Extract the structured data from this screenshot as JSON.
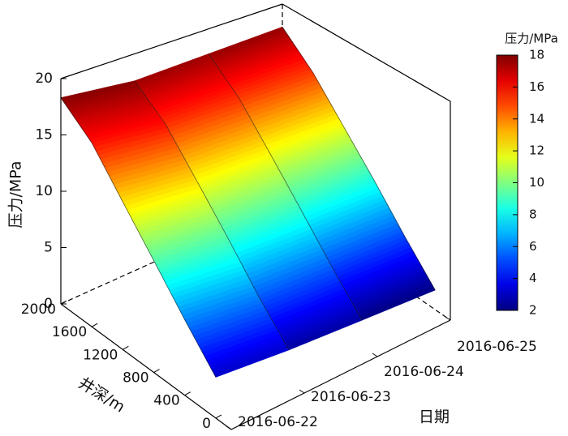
{
  "chart_data": {
    "type": "surface",
    "zlabel": "压力/MPa",
    "ylabel": "井深/m",
    "xlabel": "日期",
    "categories": [
      "2016-06-22",
      "2016-06-23",
      "2016-06-24",
      "2016-06-25"
    ],
    "y": [
      0,
      400,
      800,
      1200,
      1600,
      2000
    ],
    "ylim": [
      -200,
      2000
    ],
    "yticks": [
      0,
      400,
      800,
      1200,
      1600,
      2000
    ],
    "zlim": [
      0,
      20
    ],
    "zticks": [
      0,
      5,
      10,
      15,
      20
    ],
    "values": [
      [
        3.5,
        6.5,
        9.7,
        12.9,
        16.2,
        18.3
      ],
      [
        2.8,
        5.7,
        9.0,
        12.2,
        15.4,
        17.5
      ],
      [
        2.3,
        5.3,
        8.6,
        11.9,
        15.2,
        17.6
      ],
      [
        1.8,
        4.9,
        8.3,
        11.6,
        15.0,
        17.7
      ]
    ],
    "colormap": "jet",
    "colorbar": {
      "title": "压力/MPa",
      "clim": [
        2,
        18
      ],
      "ticks": [
        2,
        4,
        6,
        8,
        10,
        12,
        14,
        16,
        18
      ]
    }
  }
}
